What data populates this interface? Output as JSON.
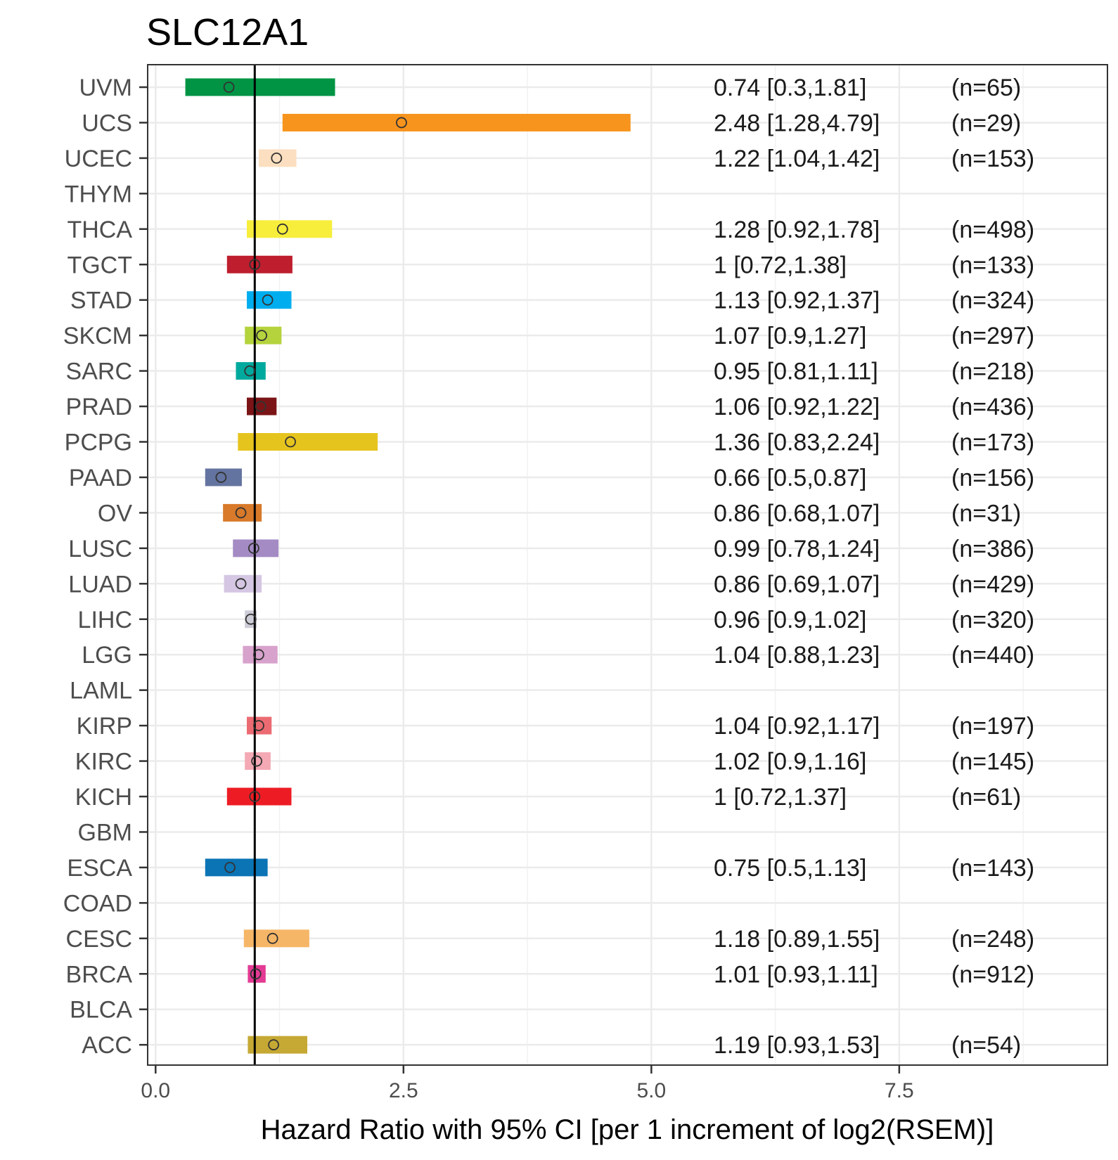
{
  "chart_data": {
    "type": "forest",
    "title": "SLC12A1",
    "xlabel": "Hazard Ratio with 95% CI [per 1 increment of log2(RSEM)]",
    "ylabel": "",
    "xlim": [
      -0.08,
      9.6
    ],
    "xticks": [
      0,
      2.5,
      5,
      7.5
    ],
    "xtick_labels": [
      "0.0",
      "2.5",
      "5.0",
      "7.5"
    ],
    "reference_line": 1,
    "grid": true,
    "rows": [
      {
        "cancer": "UVM",
        "hr": 0.74,
        "lower": 0.3,
        "upper": 1.81,
        "label": "0.74 [0.3,1.81]",
        "n": "(n=65)",
        "color": "#009444"
      },
      {
        "cancer": "UCS",
        "hr": 2.48,
        "lower": 1.28,
        "upper": 4.79,
        "label": "2.48 [1.28,4.79]",
        "n": "(n=29)",
        "color": "#f7941d"
      },
      {
        "cancer": "UCEC",
        "hr": 1.22,
        "lower": 1.04,
        "upper": 1.42,
        "label": "1.22 [1.04,1.42]",
        "n": "(n=153)",
        "color": "#fbdfc0"
      },
      {
        "cancer": "THYM",
        "hr": null,
        "lower": null,
        "upper": null,
        "label": "",
        "n": "",
        "color": "#cccccc"
      },
      {
        "cancer": "THCA",
        "hr": 1.28,
        "lower": 0.92,
        "upper": 1.78,
        "label": "1.28 [0.92,1.78]",
        "n": "(n=498)",
        "color": "#f7ee3b"
      },
      {
        "cancer": "TGCT",
        "hr": 1,
        "lower": 0.72,
        "upper": 1.38,
        "label": "1 [0.72,1.38]",
        "n": "(n=133)",
        "color": "#be1e2d"
      },
      {
        "cancer": "STAD",
        "hr": 1.13,
        "lower": 0.92,
        "upper": 1.37,
        "label": "1.13 [0.92,1.37]",
        "n": "(n=324)",
        "color": "#00aeef"
      },
      {
        "cancer": "SKCM",
        "hr": 1.07,
        "lower": 0.9,
        "upper": 1.27,
        "label": "1.07 [0.9,1.27]",
        "n": "(n=297)",
        "color": "#b5d33d"
      },
      {
        "cancer": "SARC",
        "hr": 0.95,
        "lower": 0.81,
        "upper": 1.11,
        "label": "0.95 [0.81,1.11]",
        "n": "(n=218)",
        "color": "#00a99d"
      },
      {
        "cancer": "PRAD",
        "hr": 1.06,
        "lower": 0.92,
        "upper": 1.22,
        "label": "1.06 [0.92,1.22]",
        "n": "(n=436)",
        "color": "#7b1416"
      },
      {
        "cancer": "PCPG",
        "hr": 1.36,
        "lower": 0.83,
        "upper": 2.24,
        "label": "1.36 [0.83,2.24]",
        "n": "(n=173)",
        "color": "#e6c41e"
      },
      {
        "cancer": "PAAD",
        "hr": 0.66,
        "lower": 0.5,
        "upper": 0.87,
        "label": "0.66 [0.5,0.87]",
        "n": "(n=156)",
        "color": "#6474a0"
      },
      {
        "cancer": "OV",
        "hr": 0.86,
        "lower": 0.68,
        "upper": 1.07,
        "label": "0.86 [0.68,1.07]",
        "n": "(n=31)",
        "color": "#d87a2a"
      },
      {
        "cancer": "LUSC",
        "hr": 0.99,
        "lower": 0.78,
        "upper": 1.24,
        "label": "0.99 [0.78,1.24]",
        "n": "(n=386)",
        "color": "#a48bc4"
      },
      {
        "cancer": "LUAD",
        "hr": 0.86,
        "lower": 0.69,
        "upper": 1.07,
        "label": "0.86 [0.69,1.07]",
        "n": "(n=429)",
        "color": "#d5c7e3"
      },
      {
        "cancer": "LIHC",
        "hr": 0.96,
        "lower": 0.9,
        "upper": 1.02,
        "label": "0.96 [0.9,1.02]",
        "n": "(n=320)",
        "color": "#cdcdd8"
      },
      {
        "cancer": "LGG",
        "hr": 1.04,
        "lower": 0.88,
        "upper": 1.23,
        "label": "1.04 [0.88,1.23]",
        "n": "(n=440)",
        "color": "#d7a2cc"
      },
      {
        "cancer": "LAML",
        "hr": null,
        "lower": null,
        "upper": null,
        "label": "",
        "n": "",
        "color": "#cccccc"
      },
      {
        "cancer": "KIRP",
        "hr": 1.04,
        "lower": 0.92,
        "upper": 1.17,
        "label": "1.04 [0.92,1.17]",
        "n": "(n=197)",
        "color": "#ec6b72"
      },
      {
        "cancer": "KIRC",
        "hr": 1.02,
        "lower": 0.9,
        "upper": 1.16,
        "label": "1.02 [0.9,1.16]",
        "n": "(n=145)",
        "color": "#f4a9b4"
      },
      {
        "cancer": "KICH",
        "hr": 1,
        "lower": 0.72,
        "upper": 1.37,
        "label": "1 [0.72,1.37]",
        "n": "(n=61)",
        "color": "#ed1c24"
      },
      {
        "cancer": "GBM",
        "hr": null,
        "lower": null,
        "upper": null,
        "label": "",
        "n": "",
        "color": "#cccccc"
      },
      {
        "cancer": "ESCA",
        "hr": 0.75,
        "lower": 0.5,
        "upper": 1.13,
        "label": "0.75 [0.5,1.13]",
        "n": "(n=143)",
        "color": "#0a74b5"
      },
      {
        "cancer": "COAD",
        "hr": null,
        "lower": null,
        "upper": null,
        "label": "",
        "n": "",
        "color": "#cccccc"
      },
      {
        "cancer": "CESC",
        "hr": 1.18,
        "lower": 0.89,
        "upper": 1.55,
        "label": "1.18 [0.89,1.55]",
        "n": "(n=248)",
        "color": "#f6b667"
      },
      {
        "cancer": "BRCA",
        "hr": 1.01,
        "lower": 0.93,
        "upper": 1.11,
        "label": "1.01 [0.93,1.11]",
        "n": "(n=912)",
        "color": "#e33a94"
      },
      {
        "cancer": "BLCA",
        "hr": null,
        "lower": null,
        "upper": null,
        "label": "",
        "n": "",
        "color": "#cccccc"
      },
      {
        "cancer": "ACC",
        "hr": 1.19,
        "lower": 0.93,
        "upper": 1.53,
        "label": "1.19 [0.93,1.53]",
        "n": "(n=54)",
        "color": "#c5a934"
      }
    ]
  }
}
